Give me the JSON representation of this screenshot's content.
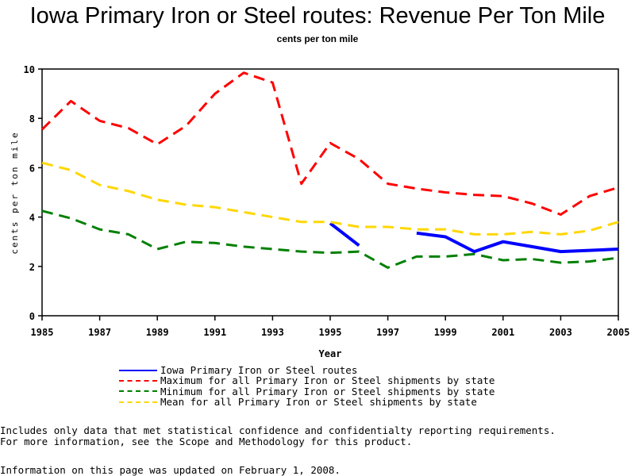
{
  "chart_data": {
    "type": "line",
    "title": "Iowa Primary Iron or Steel routes: Revenue Per Ton Mile",
    "subtitle": "cents per ton mile",
    "xlabel": "Year",
    "ylabel": "cents per ton mile",
    "xlim": [
      1985,
      2005
    ],
    "ylim": [
      0,
      10
    ],
    "grid": false,
    "x_ticks": [
      "1985",
      "1987",
      "1989",
      "1991",
      "1993",
      "1995",
      "1997",
      "1999",
      "2001",
      "2003",
      "2005"
    ],
    "y_ticks": [
      "0",
      "2",
      "4",
      "6",
      "8",
      "10"
    ],
    "x": [
      1985,
      1986,
      1987,
      1988,
      1989,
      1990,
      1991,
      1992,
      1993,
      1994,
      1995,
      1996,
      1997,
      1998,
      1999,
      2000,
      2001,
      2002,
      2003,
      2004,
      2005
    ],
    "series": [
      {
        "name": "Iowa Primary Iron or Steel routes",
        "color": "#0000ff",
        "style": "solid",
        "values": [
          null,
          null,
          null,
          null,
          null,
          null,
          null,
          null,
          null,
          null,
          3.75,
          2.85,
          null,
          3.35,
          3.2,
          2.6,
          3.0,
          2.8,
          2.6,
          2.65,
          2.7
        ]
      },
      {
        "name": "Maximum for all Primary Iron or Steel shipments by state",
        "color": "#ff0000",
        "style": "dashed",
        "values": [
          7.55,
          8.7,
          7.9,
          7.6,
          6.95,
          7.7,
          9.0,
          9.85,
          9.45,
          5.35,
          7.0,
          6.35,
          5.35,
          5.15,
          5.0,
          4.9,
          4.85,
          4.55,
          4.1,
          4.85,
          5.2
        ]
      },
      {
        "name": "Minimum for all Primary Iron or Steel shipments by state",
        "color": "#008000",
        "style": "dashed",
        "values": [
          4.25,
          3.95,
          3.5,
          3.3,
          2.7,
          3.0,
          2.95,
          2.8,
          2.7,
          2.6,
          2.55,
          2.6,
          1.95,
          2.4,
          2.4,
          2.5,
          2.25,
          2.3,
          2.15,
          2.2,
          2.35
        ]
      },
      {
        "name": "Mean for all Primary Iron or Steel shipments by state",
        "color": "#ffd700",
        "style": "dashed",
        "values": [
          6.2,
          5.9,
          5.3,
          5.05,
          4.7,
          4.5,
          4.4,
          4.2,
          4.0,
          3.8,
          3.8,
          3.6,
          3.6,
          3.5,
          3.5,
          3.3,
          3.3,
          3.4,
          3.3,
          3.45,
          3.8
        ]
      }
    ],
    "legend_position": "bottom"
  },
  "notes": {
    "line1": "Includes only data that met statistical confidence and confidentialty reporting requirements.",
    "line2": "For more information, see the Scope and Methodology for this product.",
    "updated": "Information on this page was updated on February 1, 2008."
  }
}
